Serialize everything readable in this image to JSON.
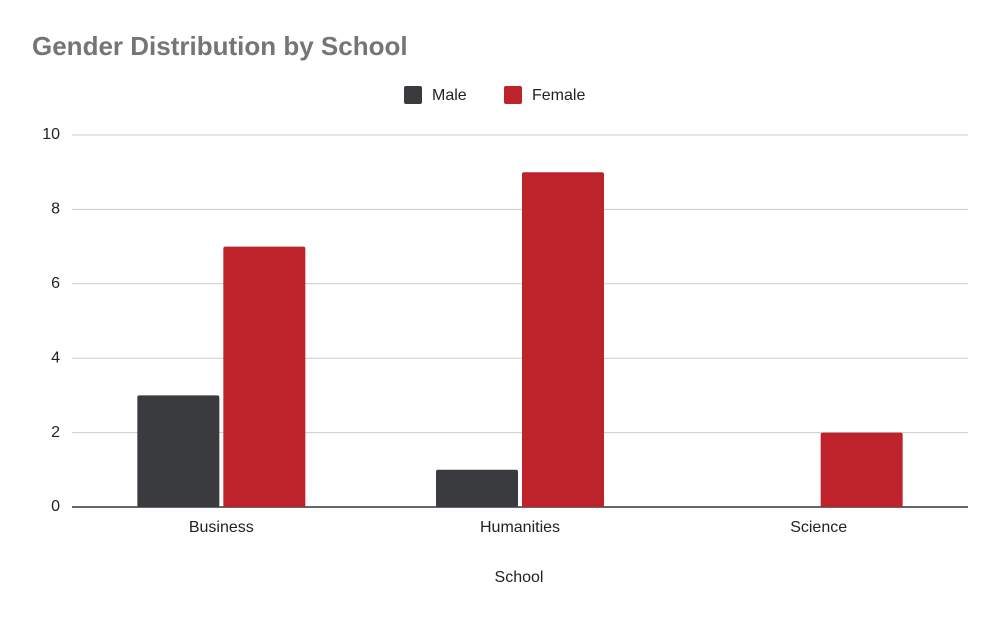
{
  "chart_data": {
    "type": "bar",
    "title": "Gender Distribution by School",
    "x_label": "School",
    "categories": [
      "Business",
      "Humanities",
      "Science"
    ],
    "series": [
      {
        "name": "Male",
        "color": "#3a3b3e",
        "values": [
          3,
          1,
          0
        ]
      },
      {
        "name": "Female",
        "color": "#be222a",
        "values": [
          7,
          9,
          2
        ]
      }
    ],
    "ylim": [
      0,
      10
    ],
    "yticks": [
      0,
      2,
      4,
      6,
      8,
      10
    ],
    "grid": true,
    "legend": "top"
  }
}
